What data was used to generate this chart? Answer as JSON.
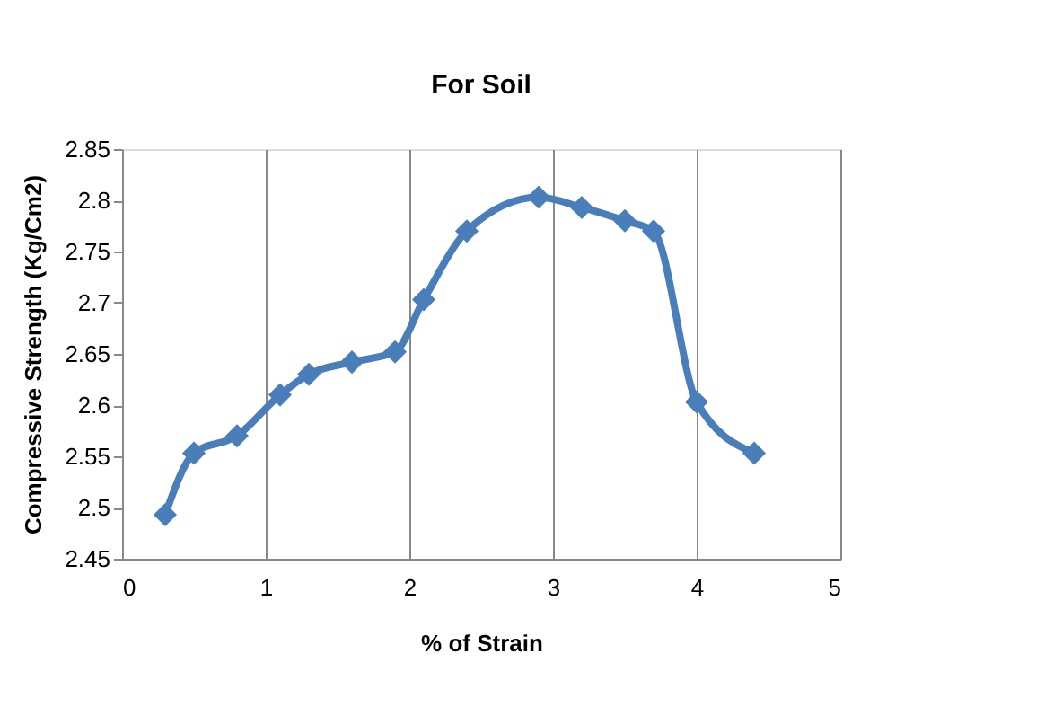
{
  "chart_data": {
    "type": "line",
    "title": "For Soil",
    "xlabel": "% of Strain",
    "ylabel": "Compressive Strength (Kg/Cm2)",
    "x": [
      0.3,
      0.5,
      0.8,
      1.1,
      1.3,
      1.6,
      1.9,
      2.1,
      2.4,
      2.9,
      3.2,
      3.5,
      3.7,
      4.0,
      4.4
    ],
    "series": [
      {
        "color": "#4a7ebb",
        "values": [
          2.493,
          2.553,
          2.57,
          2.61,
          2.63,
          2.642,
          2.652,
          2.703,
          2.77,
          2.803,
          2.793,
          2.78,
          2.77,
          2.603,
          2.553
        ]
      }
    ],
    "xlim": [
      0,
      5
    ],
    "xticks": [
      0,
      1,
      2,
      3,
      4,
      5
    ],
    "ylim": [
      2.45,
      2.85
    ],
    "yticks": [
      2.45,
      2.5,
      2.55,
      2.6,
      2.65,
      2.7,
      2.75,
      2.8,
      2.85
    ],
    "grid": "x",
    "marker": "diamond",
    "line_style": "solid",
    "legend": false
  }
}
